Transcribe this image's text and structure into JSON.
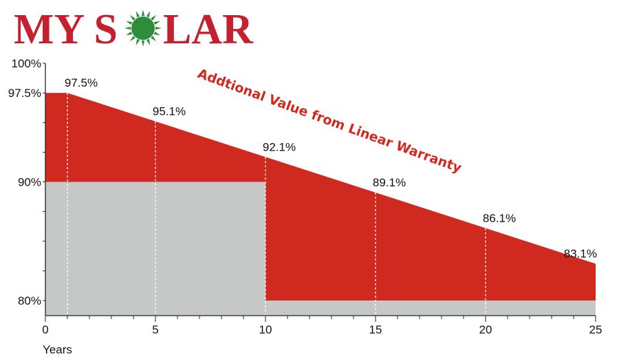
{
  "logo": {
    "text_left": "MY S",
    "text_right": "LAR",
    "sun": "sun-icon"
  },
  "chart_data": {
    "type": "area",
    "xlabel": "Years",
    "ylabel": "",
    "xlim": [
      0,
      25
    ],
    "ylim": [
      79,
      100
    ],
    "x_ticks": [
      0,
      5,
      10,
      15,
      20,
      25
    ],
    "x_tick_labels": [
      "0",
      "5",
      "10",
      "15",
      "20",
      "25"
    ],
    "y_tick_labels": [
      {
        "value": 100,
        "label": "100%"
      },
      {
        "value": 97.5,
        "label": "97.5%"
      },
      {
        "value": 90,
        "label": "90%"
      },
      {
        "value": 80,
        "label": "80%"
      }
    ],
    "series": [
      {
        "x": [
          0,
          1,
          5,
          10,
          15,
          20,
          25
        ],
        "values": [
          97.5,
          97.5,
          95.1,
          92.1,
          89.1,
          86.1,
          83.1
        ]
      },
      {
        "x": [
          0,
          10,
          10,
          25
        ],
        "values": [
          90,
          90,
          80,
          80
        ]
      }
    ],
    "data_labels": [
      {
        "x": 1,
        "y": 97.5,
        "label": "97.5%"
      },
      {
        "x": 5,
        "y": 95.1,
        "label": "95.1%"
      },
      {
        "x": 10,
        "y": 92.1,
        "label": "92.1%"
      },
      {
        "x": 15,
        "y": 89.1,
        "label": "89.1%"
      },
      {
        "x": 20,
        "y": 86.1,
        "label": "86.1%"
      },
      {
        "x": 25,
        "y": 83.1,
        "label": "83.1%"
      }
    ],
    "annotation": "Addtional Value from Linear Warranty",
    "colors": {
      "linear": "#d0291f",
      "step": "#c6c8c7",
      "annotation": "#d4271e",
      "logo": "#c4202f",
      "sun": "#2f8c3a"
    },
    "grid": false
  }
}
